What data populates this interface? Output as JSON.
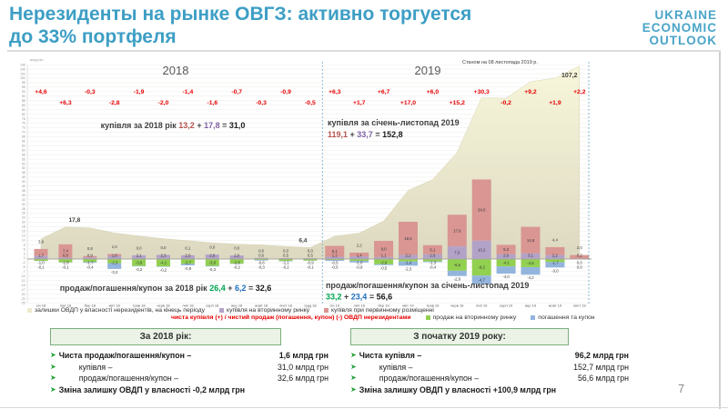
{
  "title": {
    "line1": "Нерезиденты на рынке ОВГЗ: активно торгуется",
    "line2": "до 33% портфеля"
  },
  "logo": {
    "lines": [
      "UKRAINE",
      "ECONOMIC",
      "OUTLOOK"
    ]
  },
  "page_number": "7",
  "chart_data": {
    "type": "combo-area-stacked-bar",
    "unit_label": "млрд.грн",
    "as_of": "Станом на 08 листопада 2019 р.",
    "sections": [
      {
        "label": "2018"
      },
      {
        "label": "2019"
      }
    ],
    "ylim": [
      -24.5,
      108
    ],
    "ytick_step": 2.5,
    "grid": true,
    "categories": [
      "січ 18",
      "лют 18",
      "бер 18",
      "квіт 18",
      "трав 18",
      "черв 18",
      "лип 18",
      "серп 18",
      "вер 18",
      "жовт 18",
      "лист 18",
      "груд 18",
      "січ 19",
      "лют 19",
      "бер 19",
      "квіт 19",
      "трав 19",
      "черв 19",
      "лип 19",
      "серп 19",
      "вер 19",
      "жовт 19",
      "лист 19"
    ],
    "area": {
      "name": "залишки ОВДП у власності нерезидентів, на кінець періоду",
      "color": "#ece9cc",
      "values": [
        11.2,
        17.8,
        17.3,
        14.5,
        12.8,
        11.3,
        10.2,
        9.0,
        8.3,
        7.8,
        7.0,
        6.4,
        12.7,
        14.4,
        21.1,
        38.1,
        44.1,
        59.3,
        89.6,
        89.4,
        98.6,
        100.5,
        107.2
      ],
      "point_labels": [
        {
          "index": 1,
          "text": "17,8"
        },
        {
          "index": 11,
          "text": "6,4"
        },
        {
          "index": 22,
          "text": "107,2"
        }
      ]
    },
    "series": [
      {
        "name": "купівля при первинному розміщенні",
        "color": "#d99693",
        "values": [
          3.9,
          7.4,
          0.8,
          1.0,
          0.0,
          0.0,
          0.1,
          0.0,
          0.0,
          0.0,
          0.0,
          0.0,
          6.1,
          2.2,
          9.0,
          18.5,
          5.1,
          17.6,
          34.0,
          5.3,
          14.8,
          4.4,
          2.0
        ]
      },
      {
        "name": "купівля на вторинному ринку",
        "color": "#b3a2c8",
        "values": [
          1.7,
          0.8,
          0.9,
          1.8,
          2.1,
          2.3,
          2.0,
          2.5,
          2.0,
          0.6,
          0.5,
          0.5,
          1.2,
          1.4,
          1.1,
          2.2,
          2.6,
          7.0,
          10.2,
          2.6,
          3.1,
          2.2,
          0.2
        ]
      },
      {
        "name": "продаж на вторинному ринку",
        "color": "#92d050",
        "values": [
          -1.0,
          -1.8,
          -1.7,
          -2.3,
          -3.8,
          -4.1,
          -2.7,
          -3.8,
          -2.5,
          -0.6,
          -1.1,
          -0.9,
          -0.5,
          -1.0,
          -2.9,
          -1.4,
          -1.3,
          -6.5,
          -9.2,
          -4.1,
          -4.5,
          -1.7,
          0.0
        ]
      },
      {
        "name": "погашення та купон",
        "color": "#93b5dd",
        "values": [
          -0.1,
          -0.1,
          -0.4,
          -3.2,
          -0.2,
          -0.2,
          -0.8,
          -0.3,
          -0.2,
          -0.3,
          -0.2,
          -0.1,
          -0.5,
          -0.9,
          -0.5,
          -2.3,
          -0.4,
          -2.9,
          -4.7,
          -4.0,
          -4.2,
          -3.0,
          0.0
        ]
      }
    ],
    "net_labels": [
      "+4,6",
      "+6,3",
      "-0,3",
      "-2,8",
      "-1,9",
      "-2,0",
      "-1,4",
      "-1,6",
      "-0,7",
      "-0,3",
      "-0,9",
      "-0,5",
      "+6,3",
      "+1,7",
      "+6,7",
      "+17,0",
      "+6,0",
      "+15,2",
      "+30,3",
      "-0,2",
      "+9,2",
      "+1,9",
      "+2,2"
    ],
    "net_color": "#e60000",
    "texts": {
      "buy2018": {
        "prefix": "купівля за 2018 рік",
        "a": "13,2",
        "b": "17,8",
        "total": "31,0"
      },
      "buy2019_line1": "купівля за січень-листопад 2019",
      "buy2019": {
        "a": "119,1",
        "b": "33,7",
        "total": "152,8"
      },
      "sell2018": {
        "prefix": "продаж/погашення/купон за 2018 рік",
        "a": "26,4",
        "b": "6,2",
        "total": "32,6"
      },
      "sell2019_line1": "продаж/погашення/купон за січень-листопад 2019",
      "sell2019": {
        "a": "33,2",
        "b": "23,4",
        "total": "56,6"
      },
      "color_a_buy": "#b5524e",
      "color_b_buy": "#7f63a2",
      "color_a_sell": "#00a651",
      "color_b_sell": "#1f6fc0"
    }
  },
  "legend": {
    "items": [
      {
        "label": "залишки ОВДП у власності нерезидентів, на кінець періоду",
        "color": "#ece9cc"
      },
      {
        "label": "купівля на вторинному ринку",
        "color": "#b3a2c8"
      },
      {
        "label": "купівля при первинному розміщенні",
        "color": "#d99693"
      },
      {
        "label": "продаж на вторинному ринку",
        "color": "#92d050"
      },
      {
        "label": "погашення та купон",
        "color": "#93b5dd"
      }
    ],
    "net_text": "чиста купівля (+) / чистий продаж (погашення, купон) (-) ОВДП нерезидентами"
  },
  "boxes": [
    {
      "title": "За 2018 рік:",
      "rows": [
        {
          "label": "Чиста продаж/погашення/купон –",
          "num": "1,6",
          "unit": "млрд грн",
          "bold": true
        },
        {
          "label": "купівля –",
          "num": "31,0",
          "unit": "млрд грн",
          "indent": true
        },
        {
          "label": "продаж/погашення/купон –",
          "num": "32,6",
          "unit": "млрд грн",
          "indent": true
        },
        {
          "label": "Зміна залишку ОВДП у власності",
          "num": "-0,2",
          "unit": "млрд грн",
          "bold": true,
          "inline": true
        }
      ]
    },
    {
      "title": "З початку 2019 року:",
      "rows": [
        {
          "label": "Чиста купівля –",
          "num": "96,2",
          "unit": "млрд грн",
          "bold": true
        },
        {
          "label": "купівля –",
          "num": "152,7",
          "unit": "млрд грн",
          "indent": true
        },
        {
          "label": "продаж/погашення/купон –",
          "num": "56,6",
          "unit": "млрд грн",
          "indent": true
        },
        {
          "label": "Зміна залишку ОВДП у власності",
          "num": "+100,9",
          "unit": "млрд грн",
          "bold": true,
          "inline": true
        }
      ]
    }
  ]
}
